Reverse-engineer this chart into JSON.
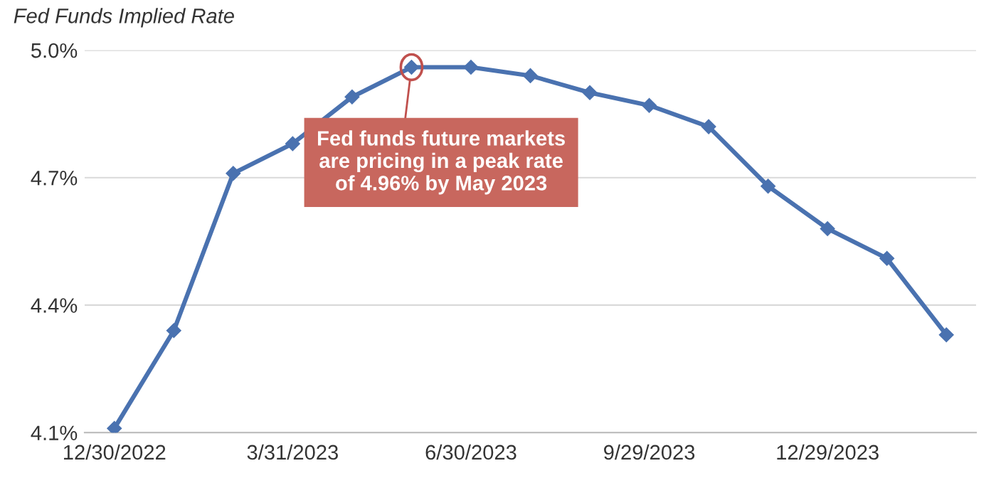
{
  "chart_data": {
    "type": "line",
    "title": "Fed Funds Implied Rate",
    "categories": [
      "12/30/2022",
      null,
      null,
      "3/31/2023",
      null,
      null,
      "6/30/2023",
      null,
      null,
      "9/29/2023",
      null,
      null,
      "12/29/2023",
      null,
      null
    ],
    "series": [
      {
        "color": "#4a72b0",
        "values": [
          4.11,
          4.34,
          4.71,
          4.78,
          4.89,
          4.96,
          4.96,
          4.94,
          4.9,
          4.87,
          4.82,
          4.68,
          4.58,
          4.51,
          4.33
        ]
      }
    ],
    "ylim": [
      4.1,
      5.0
    ],
    "yticks": [
      {
        "value": 4.1,
        "label": "4.1%"
      },
      {
        "value": 4.4,
        "label": "4.4%"
      },
      {
        "value": 4.7,
        "label": "4.7%"
      },
      {
        "value": 5.0,
        "label": "5.0%"
      }
    ],
    "grid": "y",
    "marker": "diamond",
    "line_style": "solid",
    "legend": false,
    "annotations": [
      "Fed funds future markets\nare pricing in a peak rate\nof 4.96% by May 2023"
    ]
  }
}
